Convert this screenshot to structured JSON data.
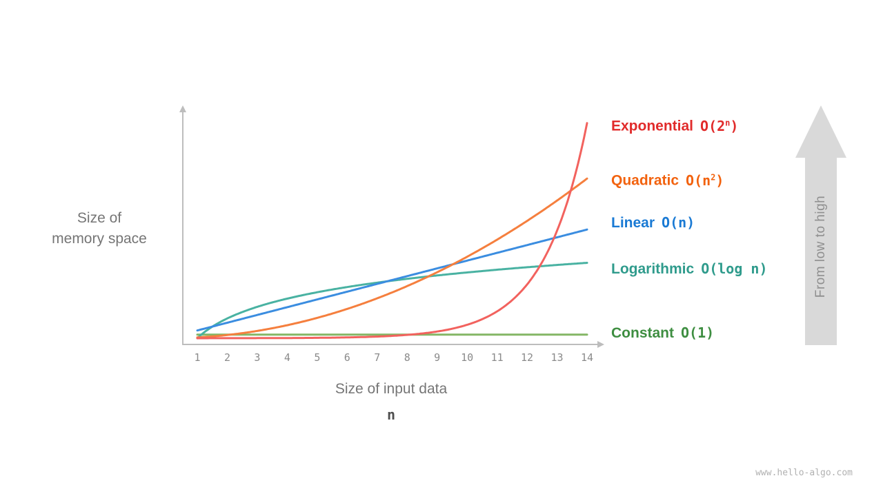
{
  "labels": {
    "y_axis": "Size of\nmemory space",
    "x_axis": "Size of input data",
    "x_var": "n"
  },
  "annotations": {
    "arrow_label": "From  low to high",
    "arrow_color": "#d9d9d9",
    "arrow_text_color": "#8f8f8f"
  },
  "footer": {
    "watermark": "www.hello-algo.com"
  },
  "chart_data": {
    "type": "line",
    "title": "",
    "xlabel": "Size of input data (n)",
    "ylabel": "Size of memory space",
    "x_range": [
      1,
      14
    ],
    "x_ticks": [
      1,
      2,
      3,
      4,
      5,
      6,
      7,
      8,
      9,
      10,
      11,
      12,
      13,
      14
    ],
    "grid": false,
    "legend_position": "right",
    "axis_color": "#bdbdbd",
    "tick_color": "#8a8a8a",
    "series": [
      {
        "name": "Exponential",
        "notation": "O(2^n)",
        "notation_pre": "O(2",
        "notation_sup": "n",
        "notation_post": ")",
        "fn": "2^n",
        "color": "#f2625e",
        "label_color": "#e12b2b",
        "peak": 0.97
      },
      {
        "name": "Quadratic",
        "notation": "O(n^2)",
        "notation_pre": "O(n",
        "notation_sup": "2",
        "notation_post": ")",
        "fn": "n^2",
        "color": "#f57f3e",
        "label_color": "#f2620e",
        "peak": 0.72
      },
      {
        "name": "Linear",
        "notation": "O(n)",
        "notation_pre": "O(n)",
        "notation_sup": "",
        "notation_post": "",
        "fn": "n",
        "color": "#3b8de0",
        "label_color": "#1a7ad4",
        "peak": 0.49
      },
      {
        "name": "Logarithmic",
        "notation": "O(log n)",
        "notation_pre": "O(log n)",
        "notation_sup": "",
        "notation_post": "",
        "fn": "log n",
        "color": "#49b2a2",
        "label_color": "#2f9b8c",
        "peak": 0.34
      },
      {
        "name": "Constant",
        "notation": "O(1)",
        "notation_pre": "O(1)",
        "notation_sup": "",
        "notation_post": "",
        "fn": "1",
        "color": "#84b665",
        "label_color": "#3e8e41",
        "peak": 0.016
      }
    ]
  }
}
